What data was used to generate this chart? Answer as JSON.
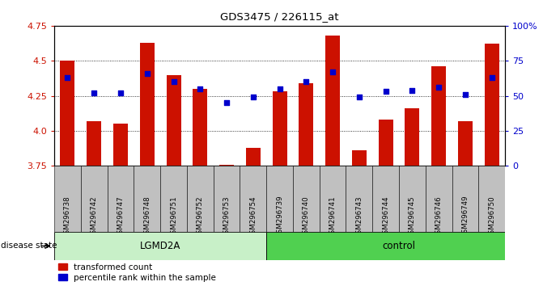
{
  "title": "GDS3475 / 226115_at",
  "samples": [
    "GSM296738",
    "GSM296742",
    "GSM296747",
    "GSM296748",
    "GSM296751",
    "GSM296752",
    "GSM296753",
    "GSM296754",
    "GSM296739",
    "GSM296740",
    "GSM296741",
    "GSM296743",
    "GSM296744",
    "GSM296745",
    "GSM296746",
    "GSM296749",
    "GSM296750"
  ],
  "bar_values": [
    4.5,
    4.07,
    4.05,
    4.63,
    4.4,
    4.3,
    3.76,
    3.88,
    4.28,
    4.34,
    4.68,
    3.86,
    4.08,
    4.16,
    4.46,
    4.07,
    4.62
  ],
  "blue_values": [
    4.38,
    4.27,
    4.27,
    4.41,
    4.35,
    4.3,
    4.2,
    4.24,
    4.3,
    4.35,
    4.42,
    4.24,
    4.28,
    4.29,
    4.31,
    4.26,
    4.38
  ],
  "groups": [
    {
      "label": "LGMD2A",
      "start": 0,
      "end": 8,
      "color": "#c8f0c8"
    },
    {
      "label": "control",
      "start": 8,
      "end": 17,
      "color": "#50d050"
    }
  ],
  "ylim": [
    3.75,
    4.75
  ],
  "yticks": [
    3.75,
    4.0,
    4.25,
    4.5,
    4.75
  ],
  "y2ticks": [
    0,
    25,
    50,
    75,
    100
  ],
  "bar_color": "#cc1100",
  "blue_color": "#0000cc",
  "plot_bg": "#ffffff",
  "xtick_bg": "#c0c0c0",
  "label_red": "transformed count",
  "label_blue": "percentile rank within the sample",
  "disease_label": "disease state"
}
